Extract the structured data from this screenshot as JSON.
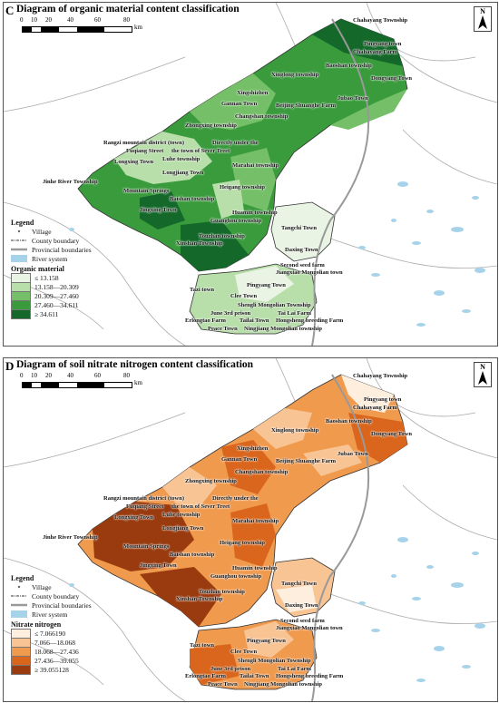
{
  "panels": {
    "c": {
      "letter": "C",
      "title": "Diagram of organic material content classification",
      "range_title": "Organic material",
      "classes": [
        {
          "label": "≤ 13.158",
          "color": "#eaf4e4"
        },
        {
          "label": "13.158—20.309",
          "color": "#b8deaa"
        },
        {
          "label": "20.309—27.460",
          "color": "#74bf67"
        },
        {
          "label": "27.460—34.611",
          "color": "#3a9b3d"
        },
        {
          "label": "≥ 34.611",
          "color": "#14692a"
        }
      ]
    },
    "d": {
      "letter": "D",
      "title": "Diagram of soil nitrate nitrogen content classification",
      "range_title": "Nitrate nitrogen",
      "classes": [
        {
          "label": "≤ 7.066190",
          "color": "#fdeedd"
        },
        {
          "label": "7.066—18.068",
          "color": "#f8c494"
        },
        {
          "label": "18.068—27.436",
          "color": "#f09a4e"
        },
        {
          "label": "27.436—39.055",
          "color": "#d9661c"
        },
        {
          "label": "≥ 39.055128",
          "color": "#9a3b0f"
        }
      ]
    }
  },
  "scale": {
    "ticks": [
      "0",
      "10",
      "20",
      "40",
      "60",
      "80"
    ],
    "unit": "km"
  },
  "north_label": "N",
  "legend": {
    "title": "Legend",
    "village": "Village",
    "county": "County boundary",
    "provincial": "Provincial boundaries",
    "river": "River system"
  },
  "colors": {
    "river": "#a7d3ea",
    "county_line": "#333333",
    "provincial_line": "#999999"
  },
  "places": [
    "Chahayang Township",
    "Pingyang town",
    "Chahayang Farm",
    "Baoshan township",
    "Xinglong township",
    "Dongyang Town",
    "Xingshizhen",
    "Gannan Town",
    "Beijing Shuanghe Farm",
    "Jubao Town",
    "Changshan township",
    "Zhongxing township",
    "Rangzi mountain district (town)",
    "Directly under the",
    "Fuqiang Street",
    "the town of Sever Treet",
    "Luhe township",
    "Longxing Town",
    "Marahai township",
    "Longjiang Town",
    "Jinhe River Township",
    "Mountain Springs",
    "Heigang township",
    "Baishan township",
    "Jingxing Town",
    "Huamin township",
    "Guanghou township",
    "Tangchi Town",
    "Touzhan township",
    "Xinshan Township",
    "Daxing Town",
    "Second seed farm",
    "Jiangxiao Mongolian town",
    "Pingyang Town",
    "Tazi town",
    "Clee Town",
    "Shengli Mongolian Township",
    "June 3rd prison",
    "Tai Lai Farm",
    "Erlongtao Farm",
    "Tailai Town",
    "Hongsheng breeding Farm",
    "Peace Town",
    "Ningjiang Mongolian township"
  ]
}
